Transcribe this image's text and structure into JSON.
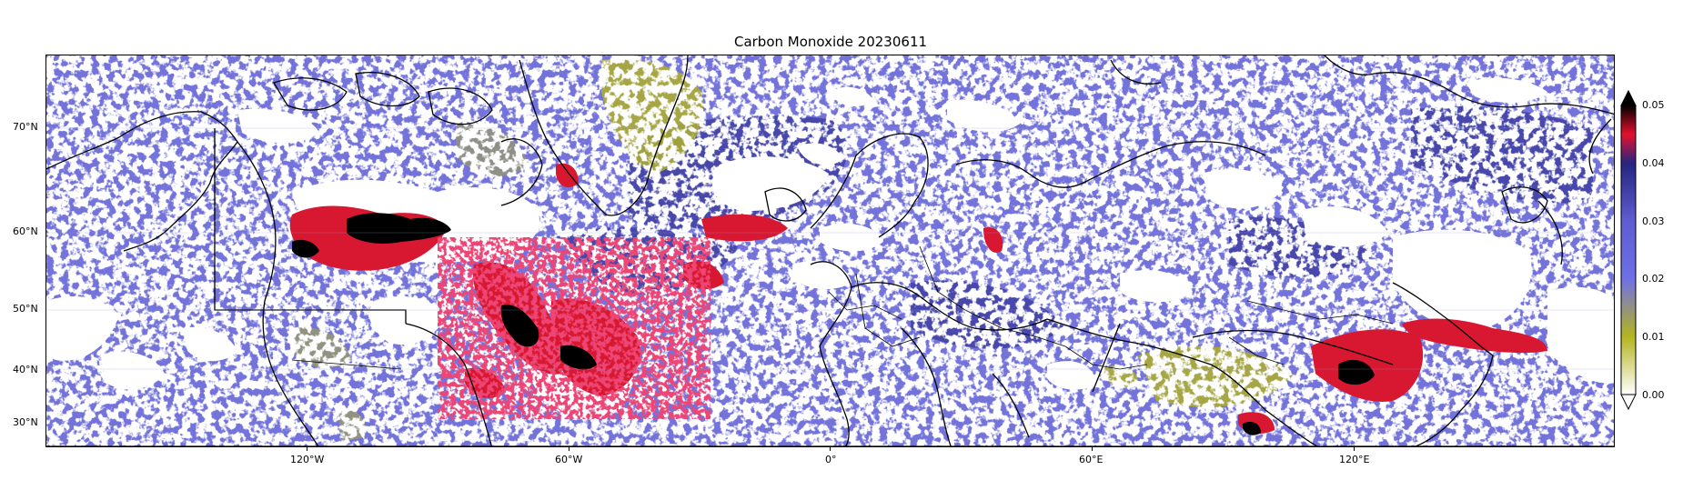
{
  "title": "Carbon Monoxide 20230611",
  "lon_axis": {
    "range": [
      -180,
      180
    ],
    "ticks": [
      {
        "value": -120,
        "label": "120°W"
      },
      {
        "value": -60,
        "label": "60°W"
      },
      {
        "value": 0,
        "label": "0°"
      },
      {
        "value": 60,
        "label": "60°E"
      },
      {
        "value": 120,
        "label": "120°E"
      }
    ]
  },
  "lat_axis": {
    "range": [
      26,
      79
    ],
    "ticks": [
      {
        "value": 70,
        "label": "70°N"
      },
      {
        "value": 60,
        "label": "60°N"
      },
      {
        "value": 50,
        "label": "50°N"
      },
      {
        "value": 40,
        "label": "40°N"
      },
      {
        "value": 30,
        "label": "30°N"
      }
    ]
  },
  "colorbar": {
    "range": [
      0.0,
      0.05
    ],
    "extend": "both",
    "ticks": [
      "0.00",
      "0.01",
      "0.02",
      "0.03",
      "0.04",
      "0.05"
    ],
    "colors": {
      "low": "#ffffff",
      "olive": "#b4b41e",
      "periwinkle": "#7070e6",
      "navy": "#252580",
      "red": "#e4102e",
      "black": "#000000"
    }
  },
  "colors": {
    "background_field": "#6e6edc",
    "cloud_mask": "#ffffff",
    "coastline": "#000000",
    "high_co": "#d81830",
    "very_high_co": "#000000",
    "low_co": "#b0b02a",
    "moderate_high": "#2e2e8c"
  }
}
